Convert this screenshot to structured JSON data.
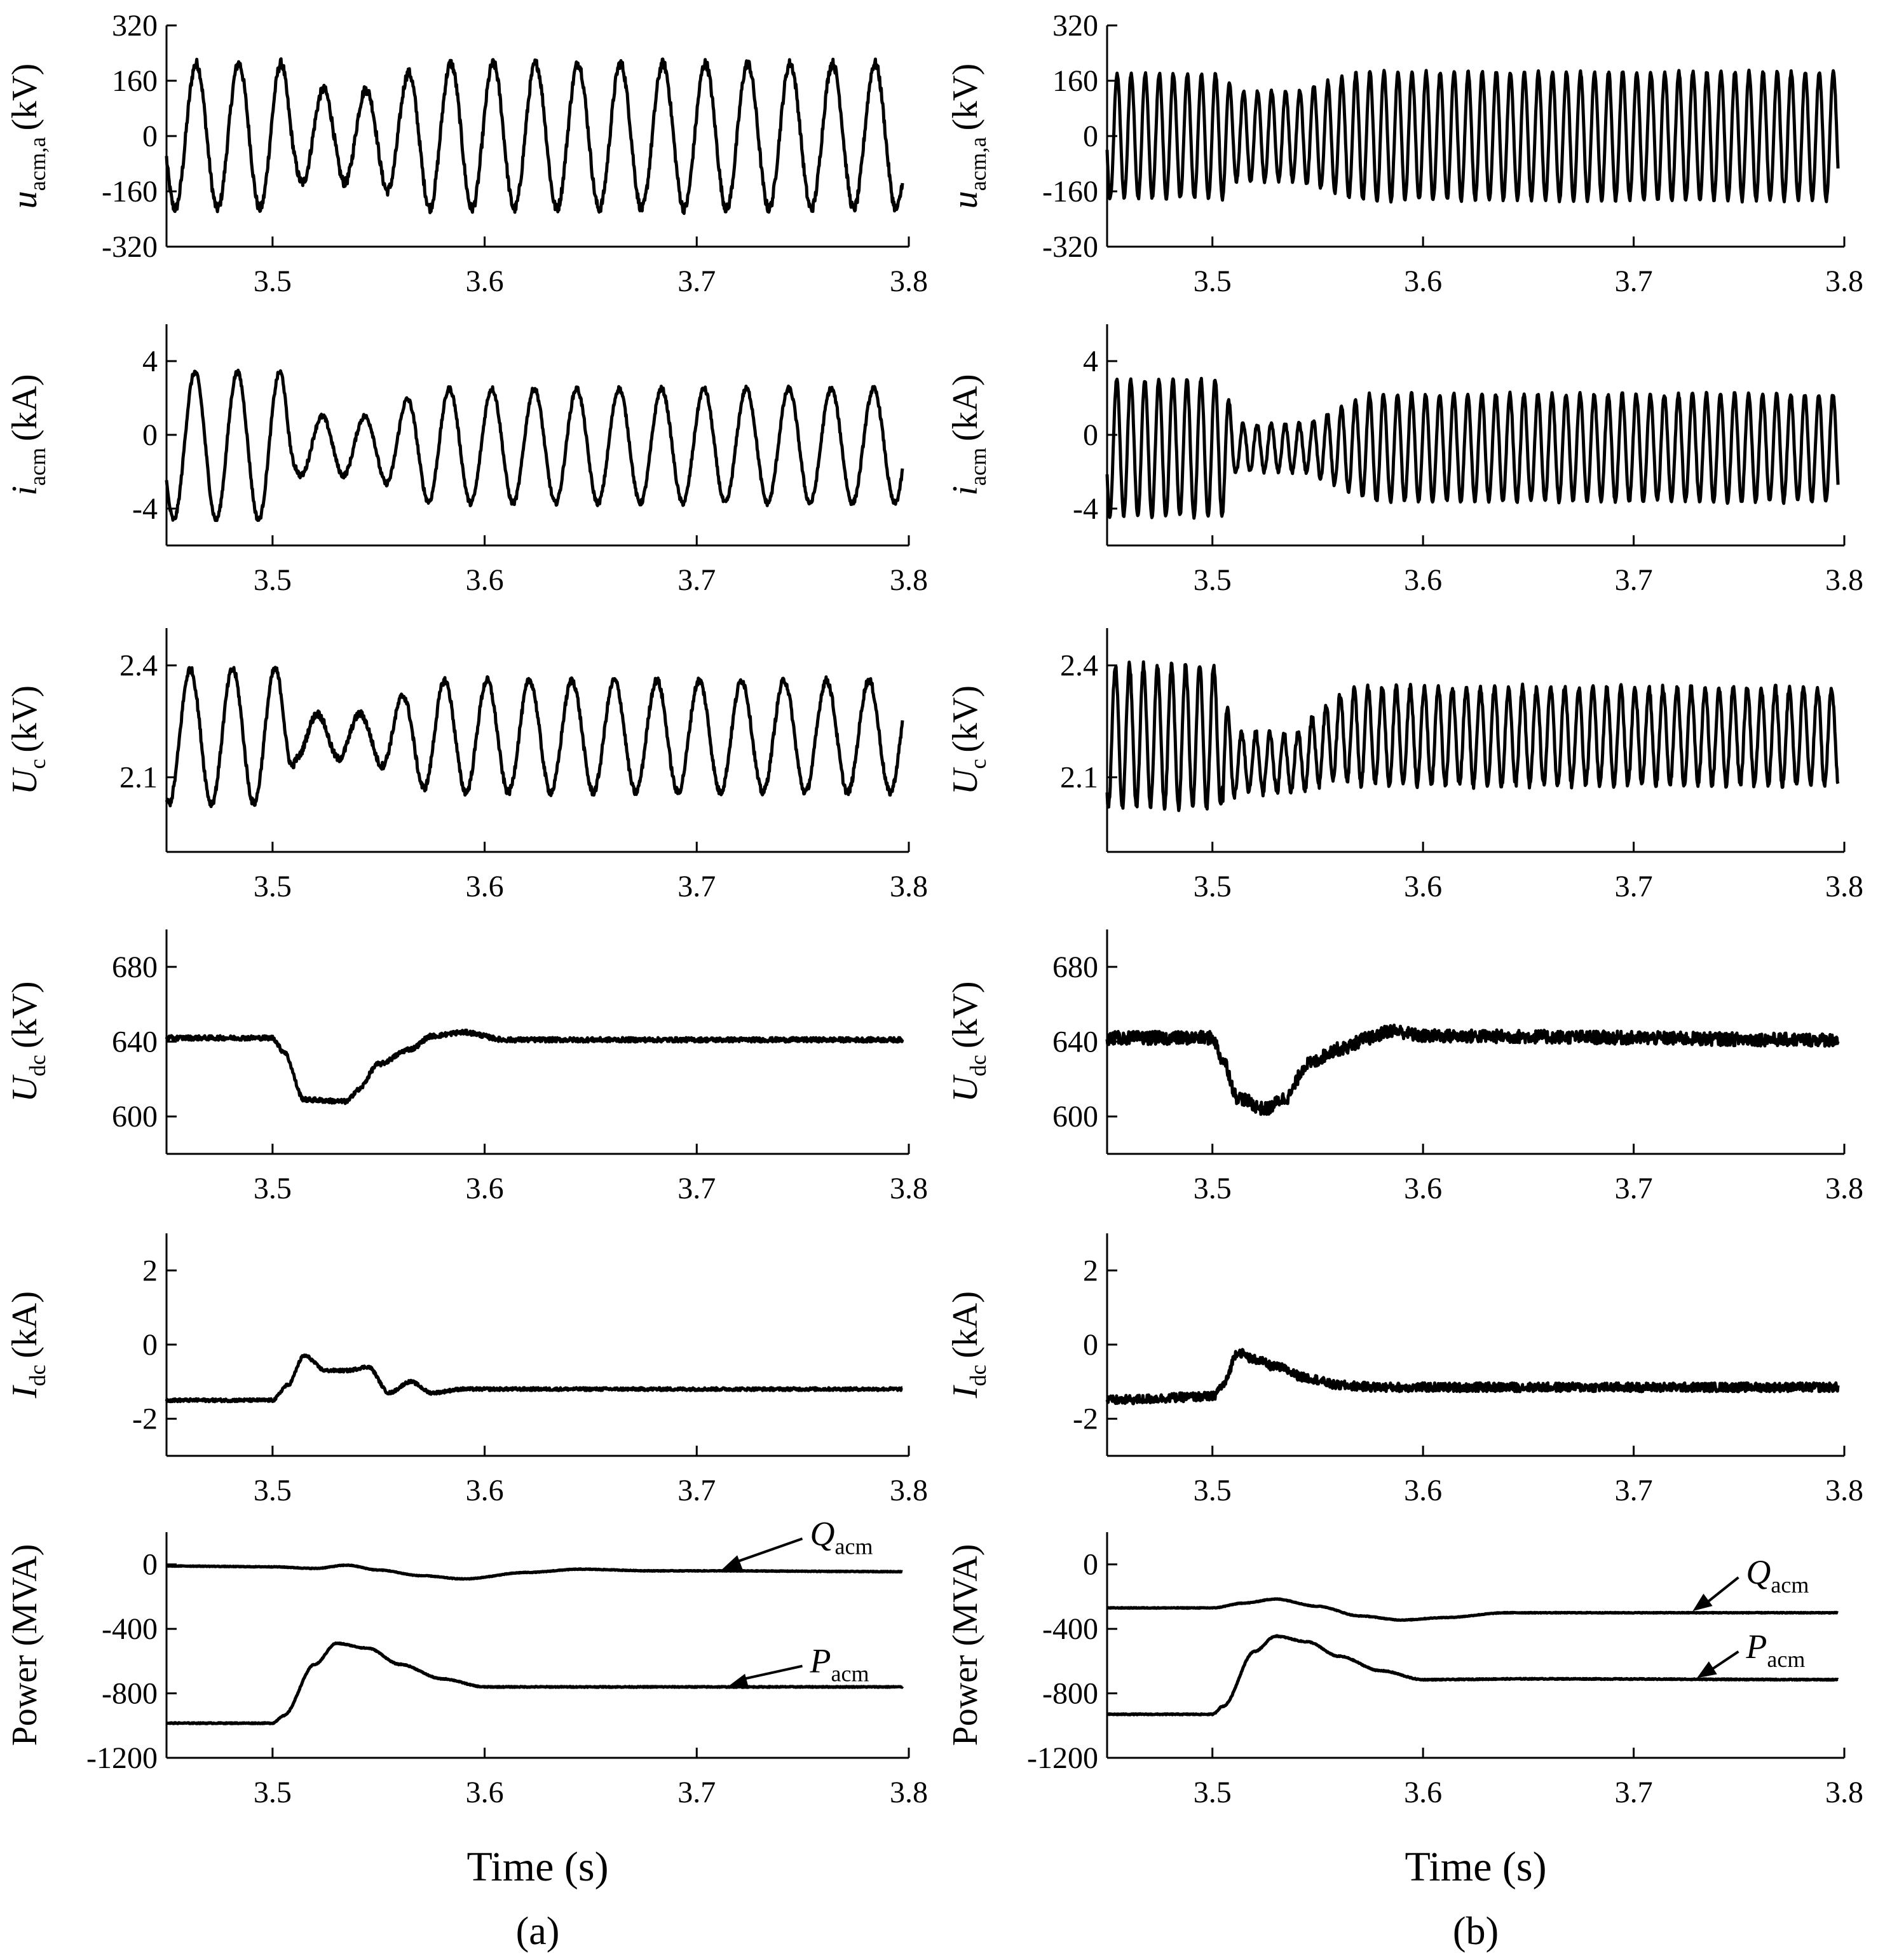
{
  "chart_data": [
    {
      "type": "line",
      "panel": "a",
      "caption": "(a)",
      "x_title": "Time (s)",
      "xlim": [
        3.45,
        3.8
      ],
      "x_ticks": [
        "3.5",
        "3.6",
        "3.7",
        "3.8"
      ],
      "x_tick_values": [
        3.5,
        3.6,
        3.7,
        3.8
      ],
      "subplots": [
        {
          "id": "uacm",
          "ylabel_main": "u",
          "ylabel_sub": "acm,a",
          "ylabel_unit": "(kV)",
          "ylim": [
            -320,
            320
          ],
          "y_ticks": [
            "320",
            "160",
            "0",
            "-160",
            "-320"
          ],
          "y_tick_values": [
            320,
            160,
            0,
            -160,
            -320
          ],
          "series": [
            {
              "name": "u_acm,a",
              "kind": "sine",
              "freq_hz": 50,
              "amp_pre": 210,
              "amp_dip": 135,
              "amp_post": 210,
              "dip_start": 3.505,
              "dip_end": 3.545,
              "offset": 0,
              "ripple": 14,
              "phase": 0.3
            }
          ]
        },
        {
          "id": "iacm",
          "ylabel_main": "i",
          "ylabel_sub": "acm",
          "ylabel_unit": "(kA)",
          "ylim": [
            -6,
            6
          ],
          "y_ticks": [
            "4",
            "0",
            "-4"
          ],
          "y_tick_values": [
            4,
            0,
            -4
          ],
          "series": [
            {
              "name": "i_acm",
              "kind": "sine",
              "freq_hz": 50,
              "amp_pre": 4.0,
              "amp_dip": 1.6,
              "amp_post": 3.1,
              "dip_start": 3.505,
              "dip_end": 3.545,
              "offset": -0.6,
              "ripple": 0.15,
              "phase": 0.5
            }
          ]
        },
        {
          "id": "uc",
          "ylabel_main": "U",
          "ylabel_sub": "c",
          "ylabel_unit": "(kV)",
          "ylim": [
            1.9,
            2.5
          ],
          "y_ticks": [
            "2.4",
            "2.1"
          ],
          "y_tick_values": [
            2.4,
            2.1
          ],
          "series": [
            {
              "name": "U_c",
              "kind": "sine",
              "freq_hz": 50,
              "amp_pre": 0.18,
              "amp_dip": 0.06,
              "amp_post": 0.15,
              "dip_start": 3.505,
              "dip_end": 3.545,
              "offset": 2.21,
              "ripple": 0.01,
              "phase": 1.2
            }
          ]
        },
        {
          "id": "udc",
          "ylabel_main": "U",
          "ylabel_sub": "dc",
          "ylabel_unit": "(kV)",
          "ylim": [
            580,
            700
          ],
          "y_ticks": [
            "680",
            "640",
            "600"
          ],
          "y_tick_values": [
            680,
            640,
            600
          ],
          "series": [
            {
              "name": "U_dc",
              "kind": "profile",
              "points": [
                [
                  3.45,
                  642
                ],
                [
                  3.5,
                  642
                ],
                [
                  3.505,
                  635
                ],
                [
                  3.515,
                  609
                ],
                [
                  3.535,
                  608
                ],
                [
                  3.54,
                  614
                ],
                [
                  3.55,
                  628
                ],
                [
                  3.565,
                  636
                ],
                [
                  3.575,
                  643
                ],
                [
                  3.59,
                  645
                ],
                [
                  3.61,
                  641
                ],
                [
                  3.8,
                  641
                ]
              ],
              "ripple": 1.2
            }
          ]
        },
        {
          "id": "idc",
          "ylabel_main": "I",
          "ylabel_sub": "dc",
          "ylabel_unit": "(kA)",
          "ylim": [
            -3,
            3
          ],
          "y_ticks": [
            "2",
            "0",
            "-2"
          ],
          "y_tick_values": [
            2,
            0,
            -2
          ],
          "series": [
            {
              "name": "I_dc",
              "kind": "profile",
              "points": [
                [
                  3.45,
                  -1.5
                ],
                [
                  3.5,
                  -1.5
                ],
                [
                  3.507,
                  -1.1
                ],
                [
                  3.515,
                  -0.3
                ],
                [
                  3.525,
                  -0.7
                ],
                [
                  3.535,
                  -0.7
                ],
                [
                  3.545,
                  -0.6
                ],
                [
                  3.555,
                  -1.3
                ],
                [
                  3.565,
                  -1.0
                ],
                [
                  3.575,
                  -1.3
                ],
                [
                  3.59,
                  -1.2
                ],
                [
                  3.8,
                  -1.2
                ]
              ],
              "ripple": 0.04
            }
          ]
        },
        {
          "id": "power",
          "ylabel_main": "Power (MVA)",
          "ylabel_sub": "",
          "ylabel_unit": "",
          "ylim": [
            -1200,
            200
          ],
          "y_ticks": [
            "0",
            "-400",
            "-800",
            "-1200"
          ],
          "y_tick_values": [
            0,
            -400,
            -800,
            -1200
          ],
          "series": [
            {
              "name": "Q_acm",
              "kind": "profile",
              "points": [
                [
                  3.45,
                  -10
                ],
                [
                  3.5,
                  -15
                ],
                [
                  3.52,
                  -25
                ],
                [
                  3.535,
                  -5
                ],
                [
                  3.55,
                  -35
                ],
                [
                  3.57,
                  -70
                ],
                [
                  3.59,
                  -90
                ],
                [
                  3.62,
                  -50
                ],
                [
                  3.645,
                  -30
                ],
                [
                  3.68,
                  -40
                ],
                [
                  3.7,
                  -40
                ],
                [
                  3.8,
                  -45
                ]
              ],
              "ripple": 2
            },
            {
              "name": "P_acm",
              "kind": "profile",
              "points": [
                [
                  3.45,
                  -985
                ],
                [
                  3.5,
                  -985
                ],
                [
                  3.505,
                  -940
                ],
                [
                  3.52,
                  -620
                ],
                [
                  3.53,
                  -490
                ],
                [
                  3.545,
                  -520
                ],
                [
                  3.56,
                  -620
                ],
                [
                  3.58,
                  -710
                ],
                [
                  3.6,
                  -760
                ],
                [
                  3.65,
                  -760
                ],
                [
                  3.8,
                  -760
                ]
              ],
              "ripple": 3
            }
          ],
          "annotations": [
            {
              "series": "Q_acm",
              "main": "Q",
              "sub": "acm",
              "label_at": [
                3.76,
                120
              ],
              "arrow_to": [
                3.712,
                -30
              ]
            },
            {
              "series": "P_acm",
              "main": "P",
              "sub": "acm",
              "label_at": [
                3.76,
                -670
              ],
              "arrow_to": [
                3.715,
                -755
              ]
            }
          ]
        }
      ]
    },
    {
      "type": "line",
      "panel": "b",
      "caption": "(b)",
      "x_title": "Time (s)",
      "xlim": [
        3.45,
        3.8
      ],
      "x_ticks": [
        "3.5",
        "3.6",
        "3.7",
        "3.8"
      ],
      "x_tick_values": [
        3.5,
        3.6,
        3.7,
        3.8
      ],
      "subplots": [
        {
          "id": "uacm",
          "ylabel_main": "u",
          "ylabel_sub": "acm,a",
          "ylabel_unit": "(kV)",
          "ylim": [
            -320,
            320
          ],
          "y_ticks": [
            "320",
            "160",
            "0",
            "-160",
            "-320"
          ],
          "y_tick_values": [
            320,
            160,
            0,
            -160,
            -320
          ],
          "series": [
            {
              "name": "u_acm,a",
              "kind": "sine",
              "freq_hz": 150,
              "amp_pre": 180,
              "amp_dip": 130,
              "amp_post": 185,
              "dip_start": 3.505,
              "dip_end": 3.54,
              "offset": 0,
              "ripple": 6,
              "phase": 0.2
            }
          ]
        },
        {
          "id": "iacm",
          "ylabel_main": "i",
          "ylabel_sub": "acm",
          "ylabel_unit": "(kA)",
          "ylim": [
            -6,
            6
          ],
          "y_ticks": [
            "4",
            "0",
            "-4"
          ],
          "y_tick_values": [
            4,
            0,
            -4
          ],
          "series": [
            {
              "name": "i_acm",
              "kind": "sine",
              "freq_hz": 150,
              "amp_pre": 3.7,
              "amp_dip": 1.3,
              "amp_post": 2.9,
              "dip_start": 3.505,
              "dip_end": 3.545,
              "offset": -0.7,
              "ripple": 0.12,
              "phase": 0.4
            }
          ]
        },
        {
          "id": "uc",
          "ylabel_main": "U",
          "ylabel_sub": "c",
          "ylabel_unit": "(kV)",
          "ylim": [
            1.9,
            2.5
          ],
          "y_ticks": [
            "2.4",
            "2.1"
          ],
          "y_tick_values": [
            2.4,
            2.1
          ],
          "series": [
            {
              "name": "U_c",
              "kind": "sine",
              "freq_hz": 150,
              "amp_pre": 0.19,
              "amp_dip": 0.08,
              "amp_post": 0.13,
              "dip_start": 3.505,
              "dip_end": 3.54,
              "offset": 2.21,
              "dip_offset": 2.14,
              "ripple": 0.01,
              "phase": 1.0
            }
          ]
        },
        {
          "id": "udc",
          "ylabel_main": "U",
          "ylabel_sub": "dc",
          "ylabel_unit": "(kV)",
          "ylim": [
            580,
            700
          ],
          "y_ticks": [
            "680",
            "640",
            "600"
          ],
          "y_tick_values": [
            680,
            640,
            600
          ],
          "series": [
            {
              "name": "U_dc",
              "kind": "profile",
              "points": [
                [
                  3.45,
                  642
                ],
                [
                  3.5,
                  642
                ],
                [
                  3.505,
                  630
                ],
                [
                  3.512,
                  610
                ],
                [
                  3.525,
                  604
                ],
                [
                  3.535,
                  610
                ],
                [
                  3.545,
                  628
                ],
                [
                  3.56,
                  636
                ],
                [
                  3.575,
                  642
                ],
                [
                  3.585,
                  646
                ],
                [
                  3.6,
                  643
                ],
                [
                  3.8,
                  641
                ]
              ],
              "ripple": 3.5
            }
          ]
        },
        {
          "id": "idc",
          "ylabel_main": "I",
          "ylabel_sub": "dc",
          "ylabel_unit": "(kA)",
          "ylim": [
            -3,
            3
          ],
          "y_ticks": [
            "2",
            "0",
            "-2"
          ],
          "y_tick_values": [
            2,
            0,
            -2
          ],
          "series": [
            {
              "name": "I_dc",
              "kind": "profile",
              "points": [
                [
                  3.45,
                  -1.5
                ],
                [
                  3.5,
                  -1.4
                ],
                [
                  3.505,
                  -1.1
                ],
                [
                  3.512,
                  -0.2
                ],
                [
                  3.52,
                  -0.4
                ],
                [
                  3.53,
                  -0.6
                ],
                [
                  3.545,
                  -0.9
                ],
                [
                  3.56,
                  -1.1
                ],
                [
                  3.58,
                  -1.15
                ],
                [
                  3.8,
                  -1.15
                ]
              ],
              "ripple": 0.12
            }
          ]
        },
        {
          "id": "power",
          "ylabel_main": "Power (MVA)",
          "ylabel_sub": "",
          "ylabel_unit": "",
          "ylim": [
            -1200,
            200
          ],
          "y_ticks": [
            "0",
            "-400",
            "-800",
            "-1200"
          ],
          "y_tick_values": [
            0,
            -400,
            -800,
            -1200
          ],
          "series": [
            {
              "name": "Q_acm",
              "kind": "profile",
              "points": [
                [
                  3.45,
                  -270
                ],
                [
                  3.5,
                  -270
                ],
                [
                  3.515,
                  -240
                ],
                [
                  3.53,
                  -215
                ],
                [
                  3.55,
                  -260
                ],
                [
                  3.57,
                  -320
                ],
                [
                  3.59,
                  -345
                ],
                [
                  3.61,
                  -330
                ],
                [
                  3.64,
                  -300
                ],
                [
                  3.8,
                  -300
                ]
              ],
              "ripple": 2
            },
            {
              "name": "P_acm",
              "kind": "profile",
              "points": [
                [
                  3.45,
                  -930
                ],
                [
                  3.5,
                  -930
                ],
                [
                  3.505,
                  -880
                ],
                [
                  3.52,
                  -540
                ],
                [
                  3.53,
                  -445
                ],
                [
                  3.545,
                  -480
                ],
                [
                  3.56,
                  -570
                ],
                [
                  3.58,
                  -660
                ],
                [
                  3.6,
                  -715
                ],
                [
                  3.65,
                  -710
                ],
                [
                  3.8,
                  -715
                ]
              ],
              "ripple": 3
            }
          ],
          "annotations": [
            {
              "series": "Q_acm",
              "main": "Q",
              "sub": "acm",
              "label_at": [
                3.76,
                -120
              ],
              "arrow_to": [
                3.728,
                -290
              ]
            },
            {
              "series": "P_acm",
              "main": "P",
              "sub": "acm",
              "label_at": [
                3.76,
                -580
              ],
              "arrow_to": [
                3.73,
                -705
              ]
            }
          ]
        }
      ]
    }
  ]
}
